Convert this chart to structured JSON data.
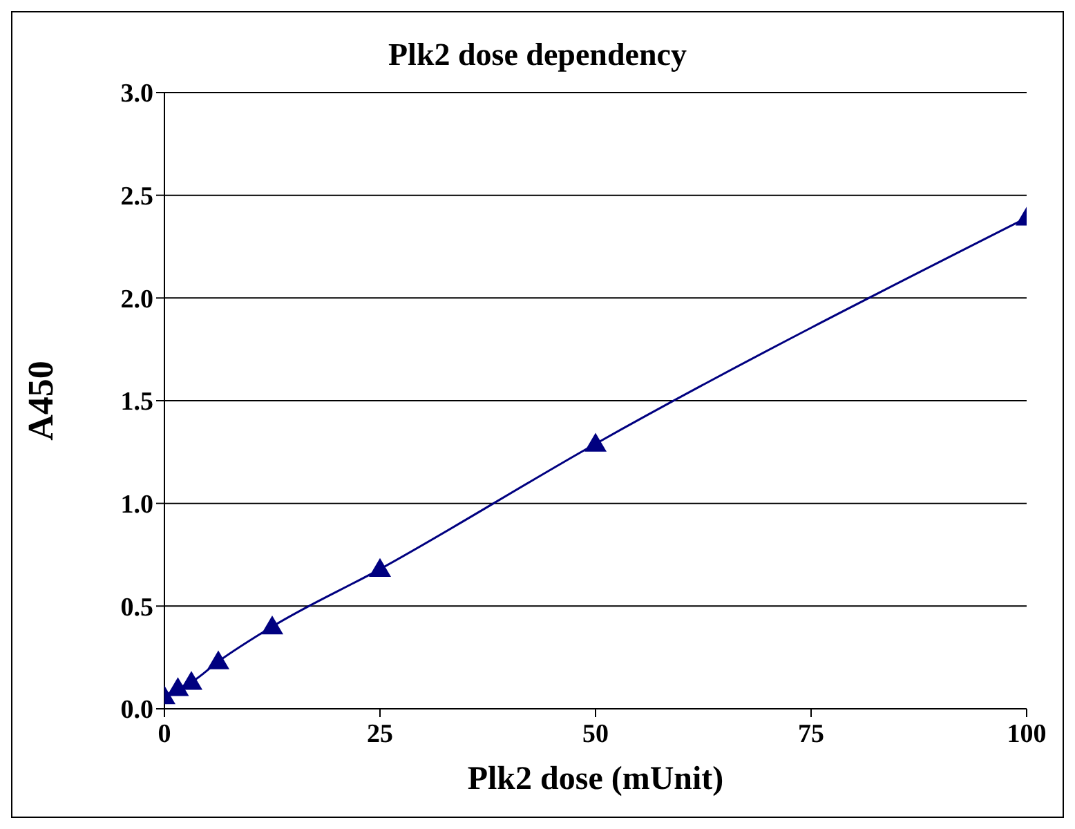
{
  "chart_data": {
    "type": "line",
    "title": "Plk2 dose dependency",
    "xlabel": "Plk2 dose (mUnit)",
    "ylabel": "A450",
    "x": [
      0,
      1.56,
      3.125,
      6.25,
      12.5,
      25,
      50,
      100
    ],
    "series": [
      {
        "color": "#000080",
        "values": [
          0.06,
          0.1,
          0.13,
          0.23,
          0.4,
          0.68,
          1.29,
          2.39
        ]
      }
    ],
    "xlim": [
      0,
      100
    ],
    "xticks": [
      0,
      25,
      50,
      75,
      100
    ],
    "ylim": [
      0,
      3
    ],
    "yticks": [
      {
        "value": 0,
        "label": "0.0"
      },
      {
        "value": 0.5,
        "label": "0.5"
      },
      {
        "value": 1,
        "label": "1.0"
      },
      {
        "value": 1.5,
        "label": "1.5"
      },
      {
        "value": 2,
        "label": "2.0"
      },
      {
        "value": 2.5,
        "label": "2.5"
      },
      {
        "value": 3,
        "label": "3.0"
      }
    ],
    "grid": "y",
    "marker": "triangle",
    "line_style": "solid",
    "legend": false
  }
}
